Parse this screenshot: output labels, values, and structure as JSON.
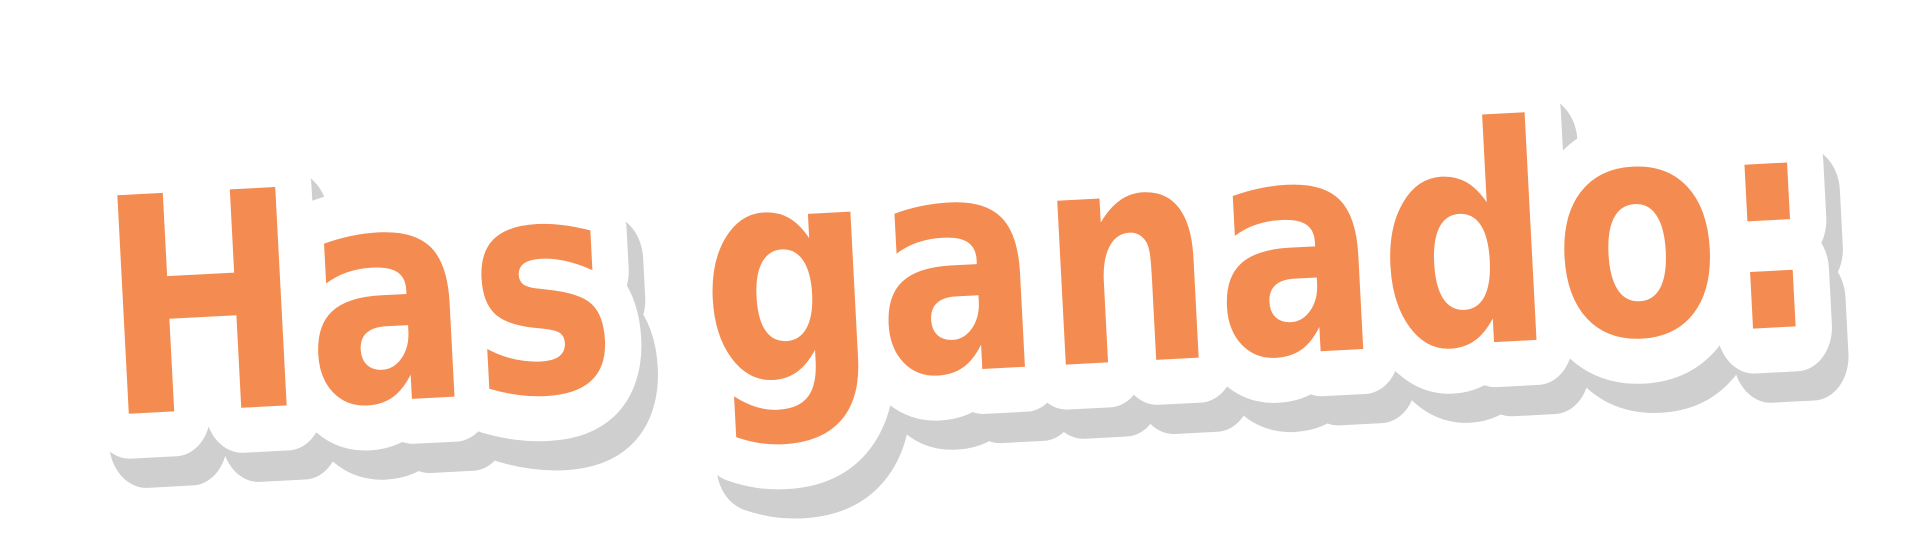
{
  "title": {
    "text": "Has ganado:",
    "fill_color": "#F48C51",
    "outline_color": "#FFFFFF",
    "shadow_color": "#CFCFCF"
  }
}
